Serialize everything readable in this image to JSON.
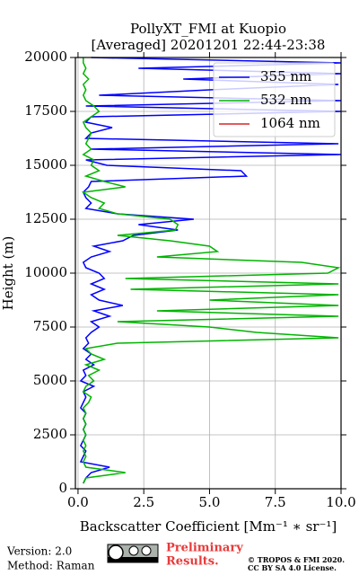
{
  "chart_data": {
    "type": "profile",
    "title": "PollyXT_FMI at Kuopio",
    "subtitle": "[Averaged] 20201201 22:44-23:38",
    "x_label": "Backscatter Coefficient [Mm⁻¹ ∗ sr⁻¹]",
    "y_label": "Height (m)",
    "xlim": [
      -0.1,
      10
    ],
    "xticks": [
      {
        "value": 0,
        "label": "0.0"
      },
      {
        "value": 2.5,
        "label": "2.5"
      },
      {
        "value": 5,
        "label": "5.0"
      },
      {
        "value": 7.5,
        "label": "7.5"
      },
      {
        "value": 10,
        "label": "10.0"
      }
    ],
    "ylim": [
      0,
      20000
    ],
    "yticks": [
      0,
      2500,
      5000,
      7500,
      10000,
      12500,
      15000,
      17500,
      20000
    ],
    "grid": true,
    "legend": "upper right",
    "heights": [
      0,
      250,
      500,
      750,
      1000,
      1250,
      1500,
      1750,
      2000,
      2250,
      2500,
      2750,
      3000,
      3250,
      3500,
      3750,
      4000,
      4250,
      4500,
      4750,
      5000,
      5250,
      5500,
      5750,
      6000,
      6250,
      6500,
      6750,
      7000,
      7250,
      7500,
      7750,
      8000,
      8250,
      8500,
      8750,
      9000,
      9250,
      9500,
      9750,
      10000,
      10250,
      10500,
      10750,
      11000,
      11250,
      11500,
      11750,
      12000,
      12250,
      12500,
      12750,
      13000,
      13250,
      13500,
      13750,
      14000,
      14250,
      14500,
      14750,
      15000,
      15250,
      15500,
      15750,
      16000,
      16250,
      16500,
      16750,
      17000,
      17250,
      17500,
      17750,
      18000,
      18250,
      18500,
      18750,
      19000,
      19250,
      19500,
      19750,
      20000
    ],
    "series": [
      {
        "name": "355 nm",
        "color": "#0000ff",
        "values": [
          null,
          0.2,
          0.3,
          0.5,
          1.2,
          0.1,
          0.2,
          0.3,
          0.1,
          0.2,
          0.3,
          0.2,
          0.3,
          0.2,
          0.3,
          0.1,
          0.2,
          0.3,
          0.2,
          0.6,
          0.1,
          0.3,
          0.2,
          0.6,
          0.3,
          0.5,
          0.2,
          0.4,
          0.3,
          0.5,
          0.8,
          0.5,
          1.2,
          0.6,
          1.7,
          0.8,
          0.5,
          1.0,
          0.5,
          1.0,
          0.8,
          0.3,
          0.2,
          0.5,
          1.2,
          0.6,
          1.7,
          2.1,
          3.8,
          2.3,
          4.4,
          1.5,
          0.3,
          0.5,
          0.3,
          0.2,
          0.4,
          0.5,
          6.4,
          6.2,
          1.1,
          0.3,
          10.0,
          0.5,
          9.9,
          0.3,
          0.5,
          1.3,
          0.3,
          0.5,
          10.0,
          0.3,
          10.0,
          0.8,
          5.0,
          9.9,
          4.0,
          10.0,
          2.3,
          10.0,
          0.5
        ]
      },
      {
        "name": "532 nm",
        "color": "#00b400",
        "values": [
          null,
          0.2,
          0.3,
          1.8,
          0.3,
          0.2,
          0.3,
          0.2,
          0.3,
          0.2,
          0.3,
          0.2,
          0.3,
          0.2,
          0.3,
          0.2,
          0.4,
          0.5,
          0.2,
          0.3,
          0.6,
          0.4,
          0.8,
          0.3,
          1.0,
          0.5,
          0.3,
          1.5,
          9.9,
          6.8,
          5.0,
          1.5,
          9.9,
          3.0,
          9.9,
          5.0,
          9.9,
          2.0,
          9.9,
          1.8,
          9.5,
          9.9,
          8.5,
          3.0,
          5.3,
          5.0,
          3.5,
          1.5,
          3.7,
          3.8,
          3.5,
          1.5,
          0.8,
          1.0,
          0.5,
          0.2,
          1.8,
          1.0,
          0.3,
          0.8,
          0.5,
          0.6,
          0.2,
          0.5,
          0.3,
          0.4,
          0.5,
          0.3,
          0.2,
          0.5,
          0.8,
          0.6,
          0.3,
          0.2,
          0.3,
          0.2,
          0.4,
          0.2,
          0.3,
          0.2,
          0.2
        ]
      },
      {
        "name": "1064 nm",
        "color": "#d62728",
        "values": [
          null,
          null,
          null,
          null,
          null,
          null,
          null,
          null,
          null,
          null,
          null,
          null,
          null,
          null,
          null,
          null,
          null,
          null,
          null,
          null,
          null,
          null,
          null,
          null,
          null,
          null,
          null,
          null,
          null,
          null,
          null,
          null,
          null,
          null,
          null,
          null,
          null,
          null,
          null,
          null,
          null,
          null,
          null,
          null,
          null,
          null,
          null,
          null,
          null,
          null,
          null,
          null,
          null,
          null,
          null,
          null,
          null,
          null,
          null,
          null,
          null,
          null,
          null,
          null,
          null,
          null,
          null,
          null,
          null,
          null,
          null,
          null,
          null,
          null,
          null,
          null,
          null,
          null,
          null,
          null,
          null
        ]
      }
    ]
  },
  "footer": {
    "version": "Version: 2.0",
    "method": "Method: Raman",
    "preliminary": [
      "Preliminary",
      "Results."
    ],
    "copyright": [
      "© TROPOS & FMI 2020.",
      "CC BY SA 4.0 License."
    ]
  }
}
